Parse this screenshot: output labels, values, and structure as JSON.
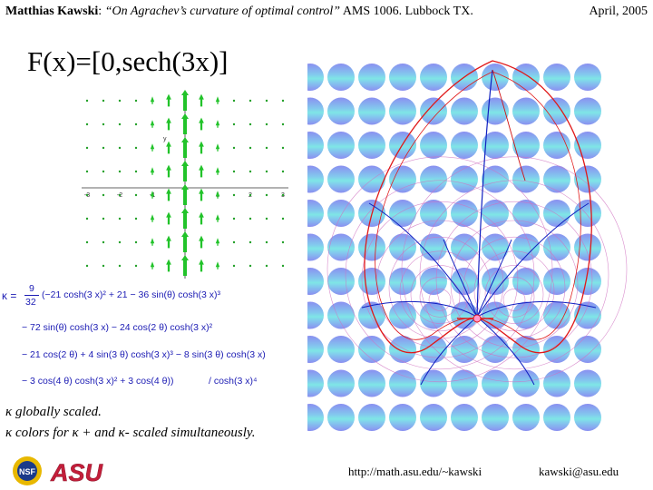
{
  "header": {
    "author": "Matthias Kawski",
    "paper_title": "“On Agrachev’s curvature of optimal control”",
    "venue": "AMS 1006. Lubbock TX.",
    "date": "April, 2005"
  },
  "slide_title": "F(x)=[0,sech(3x)]",
  "vector_field_plot": {
    "x_ticks": [
      "-3",
      "-2",
      "-1",
      "1",
      "2",
      "3"
    ],
    "y_tick": "y",
    "arrow_color": "#22c32a",
    "dot_color": "#22a028"
  },
  "formula": {
    "lhs": "κ =",
    "frac_num": "9",
    "frac_den": "32",
    "line1": "(−21 cosh(3 x)² + 21 − 36 sin(θ) cosh(3 x)³",
    "line2": "− 72 sin(θ) cosh(3 x) − 24 cos(2 θ) cosh(3 x)²",
    "line3": "− 21 cos(2 θ) + 4 sin(3 θ) cosh(3 x)³ − 8 sin(3 θ) cosh(3 x)",
    "line4": "− 3 cos(4 θ) cosh(3 x)² + 3 cos(4 θ))",
    "line4_tail": "/ cosh(3 x)⁴"
  },
  "notes": {
    "line1": "κ globally scaled.",
    "line2_a": "κ colors for",
    "line2_b": "κ +",
    "line2_c": "and",
    "line2_d": "κ- scaled simultaneously."
  },
  "logos": {
    "nsf": "NSF",
    "asu": "ASU"
  },
  "footer": {
    "url": "http://math.asu.edu/~kawski",
    "email": "kawski@asu.edu"
  },
  "colors": {
    "disc": "#8a8ff0",
    "disc_highlight": "#7fe6e6",
    "red_curve": "#e01818",
    "blue_curve": "#1020c0",
    "pink_contour": "#d070c0"
  }
}
